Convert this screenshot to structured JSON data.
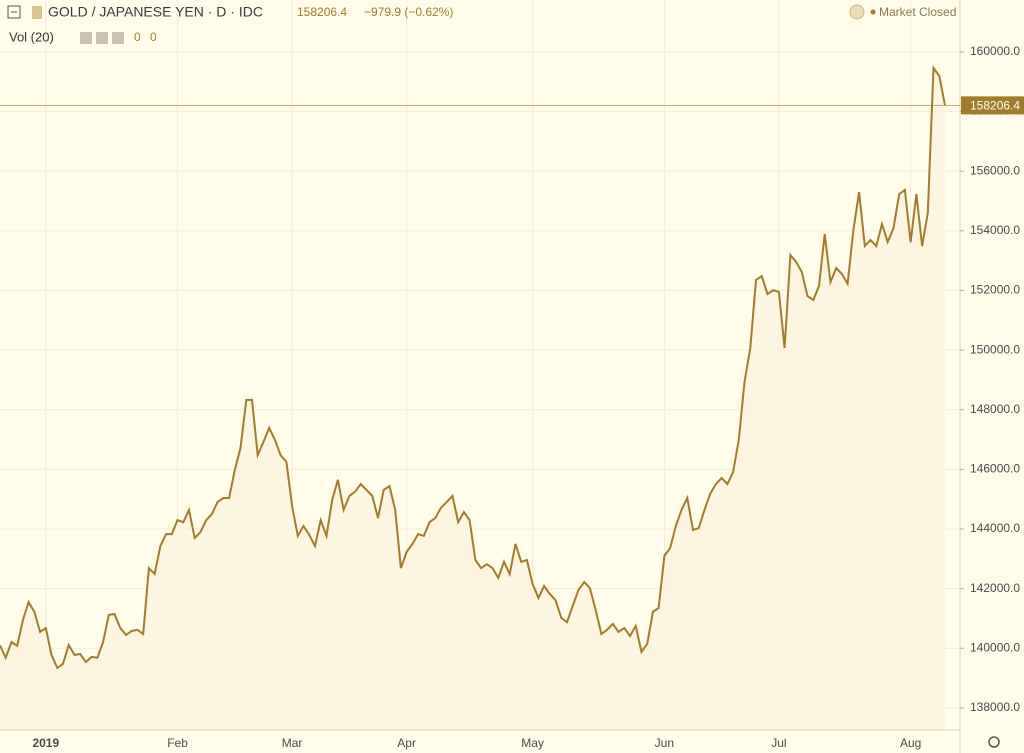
{
  "header": {
    "symbol": "GOLD / JAPANESE YEN · D · IDC",
    "change": "−979.9 (−0.62%)",
    "status": "Market Closed",
    "indicator": "Vol (20)",
    "indicator_values": [
      0,
      0
    ]
  },
  "chart_data": {
    "type": "area",
    "color": "#a27c2c",
    "fill": "#fbf3dc",
    "grid": true,
    "categories": [
      null,
      null,
      null,
      null,
      null,
      null,
      null,
      null,
      "2019",
      null,
      null,
      null,
      null,
      null,
      null,
      null,
      null,
      null,
      null,
      null,
      null,
      null,
      null,
      null,
      null,
      null,
      null,
      null,
      null,
      null,
      null,
      "Feb",
      null,
      null,
      null,
      null,
      null,
      null,
      null,
      null,
      null,
      null,
      null,
      null,
      null,
      null,
      null,
      null,
      null,
      null,
      null,
      "Mar",
      null,
      null,
      null,
      null,
      null,
      null,
      null,
      null,
      null,
      null,
      null,
      null,
      null,
      null,
      null,
      null,
      null,
      null,
      null,
      "Apr",
      null,
      null,
      null,
      null,
      null,
      null,
      null,
      null,
      null,
      null,
      null,
      null,
      null,
      null,
      null,
      null,
      null,
      null,
      null,
      null,
      null,
      "May",
      null,
      null,
      null,
      null,
      null,
      null,
      null,
      null,
      null,
      null,
      null,
      null,
      null,
      null,
      null,
      null,
      null,
      null,
      null,
      null,
      null,
      null,
      "Jun",
      null,
      null,
      null,
      null,
      null,
      null,
      null,
      null,
      null,
      null,
      null,
      null,
      null,
      null,
      null,
      null,
      null,
      null,
      null,
      "Jul",
      null,
      null,
      null,
      null,
      null,
      null,
      null,
      null,
      null,
      null,
      null,
      null,
      null,
      null,
      null,
      null,
      null,
      null,
      null,
      null,
      null,
      null,
      "Aug",
      null,
      null,
      null,
      null,
      null,
      null
    ],
    "values": [
      140100,
      139680,
      140210,
      140080,
      140950,
      141550,
      141220,
      140550,
      140680,
      139780,
      139340,
      139480,
      140110,
      139780,
      139810,
      139540,
      139710,
      139680,
      140210,
      141120,
      141150,
      140680,
      140450,
      140580,
      140620,
      140480,
      142690,
      142490,
      143430,
      143830,
      143830,
      144300,
      144230,
      144640,
      143700,
      143900,
      144300,
      144500,
      144910,
      145040,
      145040,
      145980,
      146720,
      148330,
      148330,
      146480,
      146920,
      147390,
      146990,
      146480,
      146250,
      144770,
      143770,
      144100,
      143800,
      143430,
      144300,
      143770,
      144980,
      145650,
      144640,
      145110,
      145250,
      145510,
      145310,
      145110,
      144370,
      145310,
      145440,
      144640,
      142690,
      143230,
      143500,
      143830,
      143770,
      144230,
      144370,
      144710,
      144910,
      145110,
      144230,
      144570,
      144300,
      142960,
      142690,
      142820,
      142690,
      142360,
      142900,
      142490,
      143500,
      142900,
      142960,
      142160,
      141690,
      142090,
      141820,
      141620,
      141020,
      140880,
      141420,
      141960,
      142220,
      142020,
      141290,
      140480,
      140620,
      140820,
      140550,
      140680,
      140410,
      140750,
      139880,
      140150,
      141220,
      141350,
      143100,
      143360,
      144100,
      144640,
      145040,
      143970,
      144030,
      144640,
      145180,
      145510,
      145710,
      145510,
      145910,
      146990,
      148930,
      150070,
      152350,
      152480,
      151880,
      152010,
      151950,
      150070,
      153190,
      152960,
      152620,
      151810,
      151680,
      152150,
      153890,
      152280,
      152750,
      152550,
      152220,
      154030,
      155300,
      153490,
      153690,
      153490,
      154230,
      153620,
      154090,
      155230,
      155370,
      153620,
      155230,
      153490,
      154600,
      159460,
      159190,
      158206.4
    ],
    "ylim": [
      137260,
      161740
    ],
    "yticks": [
      {
        "value": 138000,
        "label": "138000.0"
      },
      {
        "value": 140000,
        "label": "140000.0"
      },
      {
        "value": 142000,
        "label": "142000.0"
      },
      {
        "value": 144000,
        "label": "144000.0"
      },
      {
        "value": 146000,
        "label": "146000.0"
      },
      {
        "value": 148000,
        "label": "148000.0"
      },
      {
        "value": 150000,
        "label": "150000.0"
      },
      {
        "value": 152000,
        "label": "152000.0"
      },
      {
        "value": 154000,
        "label": "154000.0"
      },
      {
        "value": 156000,
        "label": "156000.0"
      },
      {
        "value": 158000,
        "label": "158000.0"
      },
      {
        "value": 160000,
        "label": "160000.0"
      }
    ]
  }
}
